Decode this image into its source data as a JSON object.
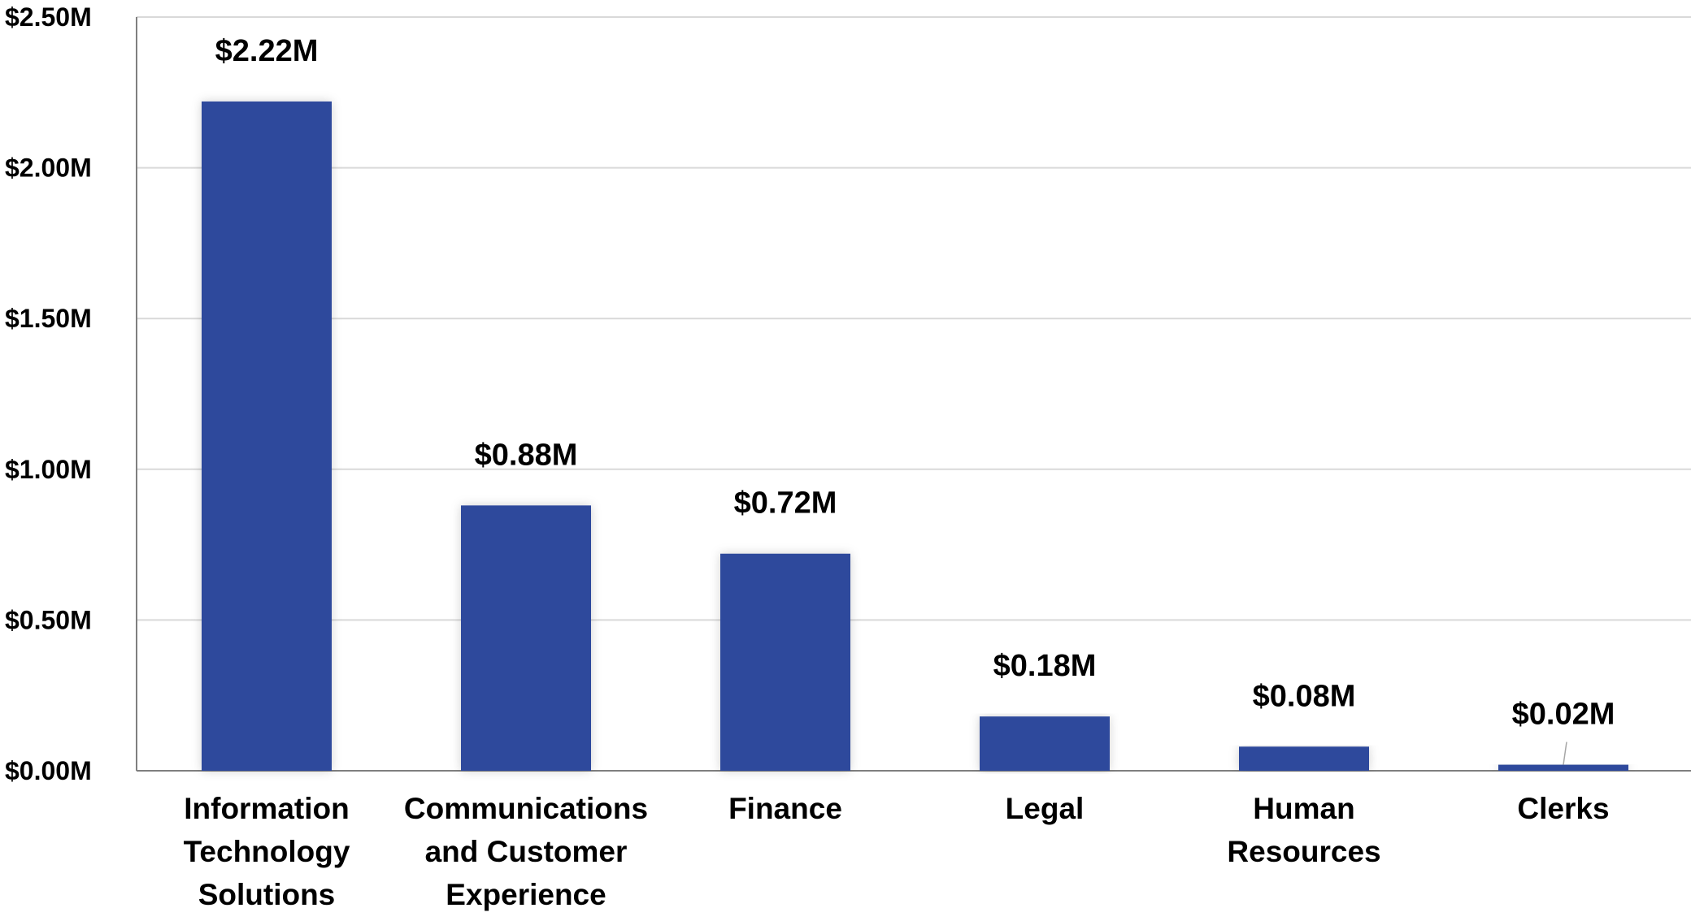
{
  "chart_data": {
    "type": "bar",
    "title": "",
    "xlabel": "",
    "ylabel": "",
    "categories": [
      "Information Technology Solutions",
      "Communications and Customer Experience",
      "Finance",
      "Legal",
      "Human Resources",
      "Clerks"
    ],
    "category_lines": [
      [
        "Information",
        "Technology",
        "Solutions"
      ],
      [
        "Communications",
        "and Customer",
        "Experience"
      ],
      [
        "Finance"
      ],
      [
        "Legal"
      ],
      [
        "Human",
        "Resources"
      ],
      [
        "Clerks"
      ]
    ],
    "values": [
      2.22,
      0.88,
      0.72,
      0.18,
      0.08,
      0.02
    ],
    "value_labels": [
      "$2.22M",
      "$0.88M",
      "$0.72M",
      "$0.18M",
      "$0.08M",
      "$0.02M"
    ],
    "ylim": [
      0,
      2.5
    ],
    "yticks": [
      0,
      0.5,
      1.0,
      1.5,
      2.0,
      2.5
    ],
    "ytick_labels": [
      "$0.00M",
      "$0.50M",
      "$1.00M",
      "$1.50M",
      "$2.00M",
      "$2.50M"
    ],
    "grid": true,
    "legend": "none",
    "colors": {
      "bar": "#2F4A9C",
      "grid": "#D9D9D9",
      "axis": "#7F7F7F",
      "text": "#000000"
    }
  }
}
